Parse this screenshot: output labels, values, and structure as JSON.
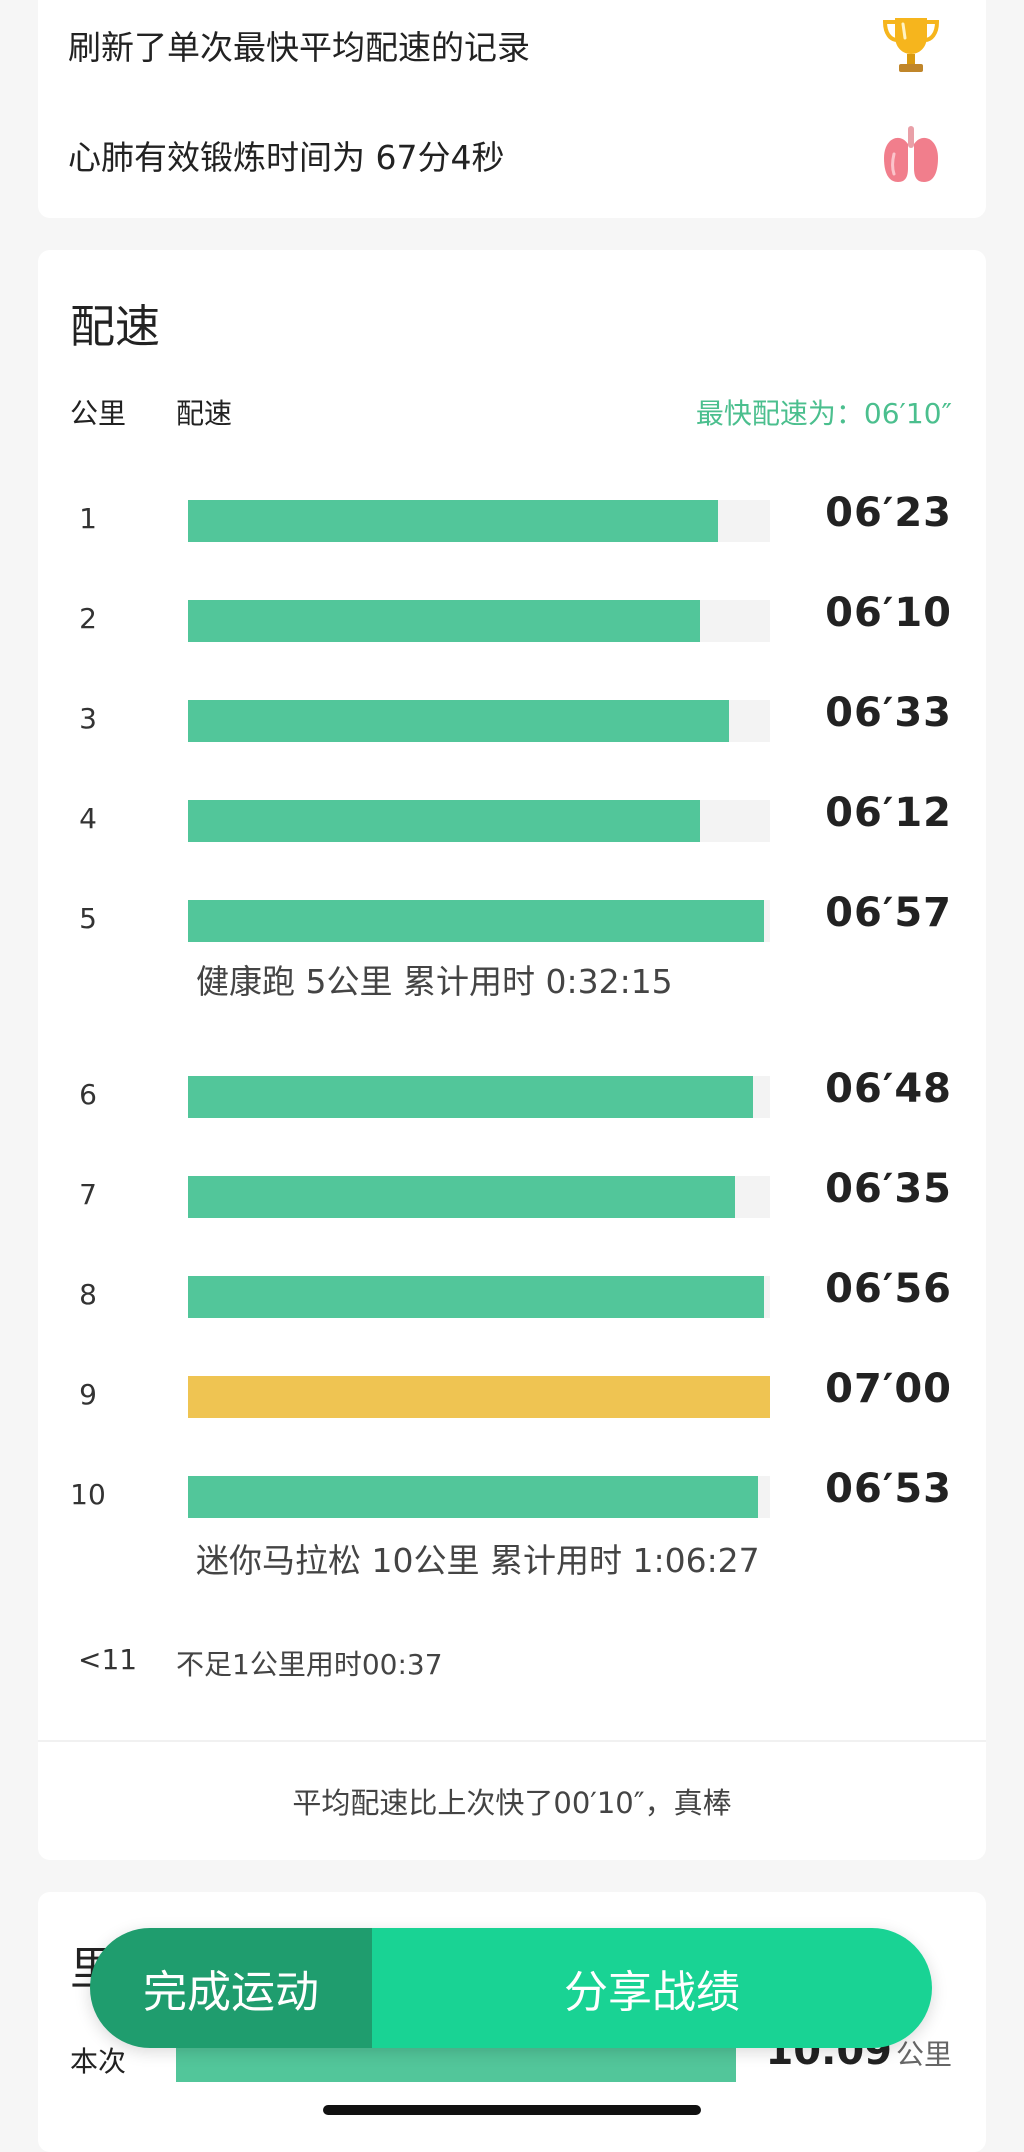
{
  "achievements": [
    {
      "text": "刷新了单次最快平均配速的记录",
      "icon": "trophy-icon"
    },
    {
      "text": "心肺有效锻炼时间为 67分4秒",
      "icon": "lungs-icon"
    }
  ],
  "pace_section": {
    "title": "配速",
    "header_km": "公里",
    "header_pace": "配速",
    "fastest_label": "最快配速为：06′10″",
    "rows": [
      {
        "km": "1",
        "pace": "06′23",
        "fraction": 0.91
      },
      {
        "km": "2",
        "pace": "06′10",
        "fraction": 0.88
      },
      {
        "km": "3",
        "pace": "06′33",
        "fraction": 0.93
      },
      {
        "km": "4",
        "pace": "06′12",
        "fraction": 0.88
      },
      {
        "km": "5",
        "pace": "06′57",
        "fraction": 0.99
      },
      {
        "km": "6",
        "pace": "06′48",
        "fraction": 0.97
      },
      {
        "km": "7",
        "pace": "06′35",
        "fraction": 0.94
      },
      {
        "km": "8",
        "pace": "06′56",
        "fraction": 0.99
      },
      {
        "km": "9",
        "pace": "07′00",
        "fraction": 1.0
      },
      {
        "km": "10",
        "pace": "06′53",
        "fraction": 0.98
      }
    ],
    "summary_5k": "健康跑 5公里 累计用时 0:32:15",
    "summary_10k": "迷你马拉松 10公里 累计用时 1:06:27",
    "remainder_km": "<11",
    "remainder_text": "不足1公里用时00:37",
    "compare_text": "平均配速比上次快了00′10″，真棒"
  },
  "distance_section": {
    "title": "里",
    "row_label": "本次",
    "value": "10.09",
    "unit": "公里"
  },
  "actions": {
    "done_label": "完成运动",
    "share_label": "分享战绩"
  },
  "colors": {
    "bar_normal": "#52c69a",
    "bar_slowest": "#efc452",
    "accent_text": "#4bbf8e",
    "share_button": "#19d394",
    "done_button": "#1f9d6e"
  }
}
